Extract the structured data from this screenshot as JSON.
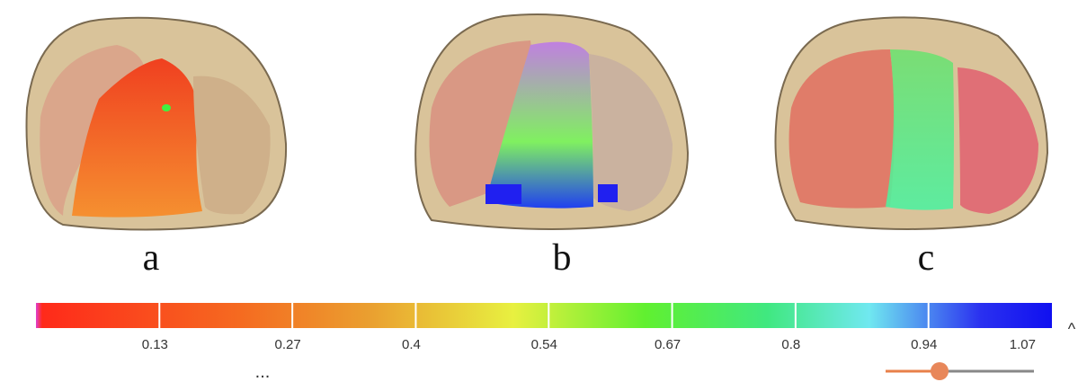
{
  "panels": [
    {
      "label": "a"
    },
    {
      "label": "b"
    },
    {
      "label": "c"
    }
  ],
  "colorbar": {
    "lim": [
      0,
      1.07
    ],
    "ticks": [
      0.13,
      0.27,
      0.4,
      0.54,
      0.67,
      0.8,
      0.94,
      1.07
    ]
  },
  "more": "...",
  "toggle": "^"
}
